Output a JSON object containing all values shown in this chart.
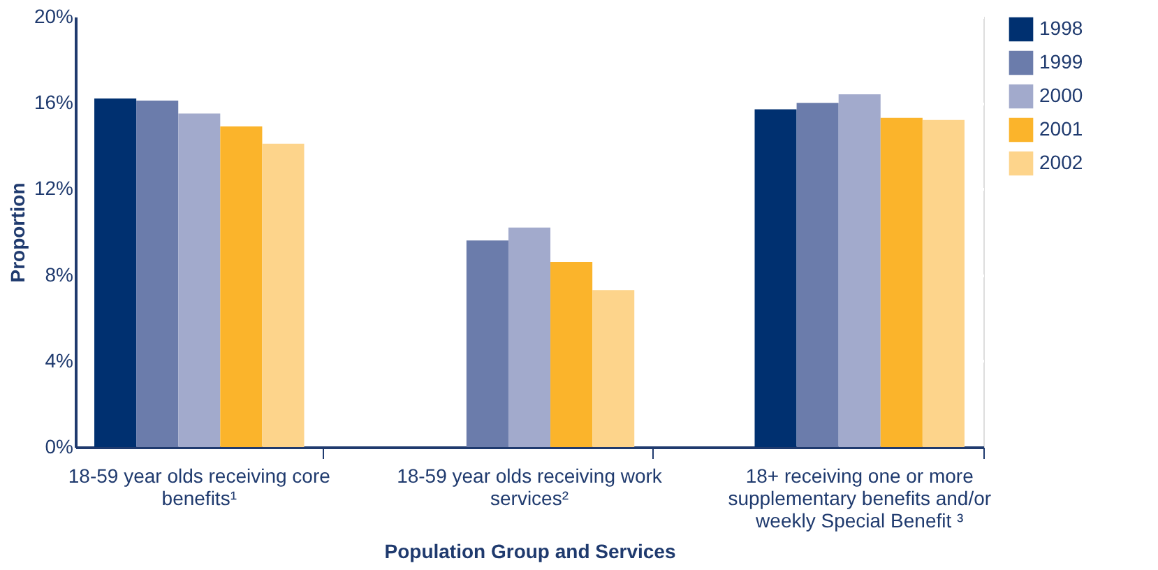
{
  "chart_data": {
    "type": "bar",
    "xlabel": "Population Group and Services",
    "ylabel": "Proportion",
    "categories": [
      "18-59 year olds receiving core benefits¹",
      "18-59 year olds receiving work services²",
      "18+ receiving one or more supplementary  benefits and/or weekly Special Benefit ³"
    ],
    "series": [
      {
        "name": "1998",
        "color": "#003070",
        "values": [
          16.2,
          null,
          15.7
        ]
      },
      {
        "name": "1999",
        "color": "#6b7cab",
        "values": [
          16.1,
          9.6,
          16.0
        ]
      },
      {
        "name": "2000",
        "color": "#a2aacc",
        "values": [
          15.5,
          10.2,
          16.4
        ]
      },
      {
        "name": "2001",
        "color": "#fbb42b",
        "values": [
          14.9,
          8.6,
          15.3
        ]
      },
      {
        "name": "2002",
        "color": "#fdd48b",
        "values": [
          14.1,
          7.3,
          15.2
        ]
      }
    ],
    "ylim": [
      0,
      20
    ],
    "yticks": [
      {
        "value": 0,
        "label": "0%"
      },
      {
        "value": 4,
        "label": "4%"
      },
      {
        "value": 8,
        "label": "8%"
      },
      {
        "value": 12,
        "label": "12%"
      },
      {
        "value": 16,
        "label": "16%"
      },
      {
        "value": 20,
        "label": "20%"
      }
    ],
    "grid": "y",
    "legend": "top right"
  }
}
